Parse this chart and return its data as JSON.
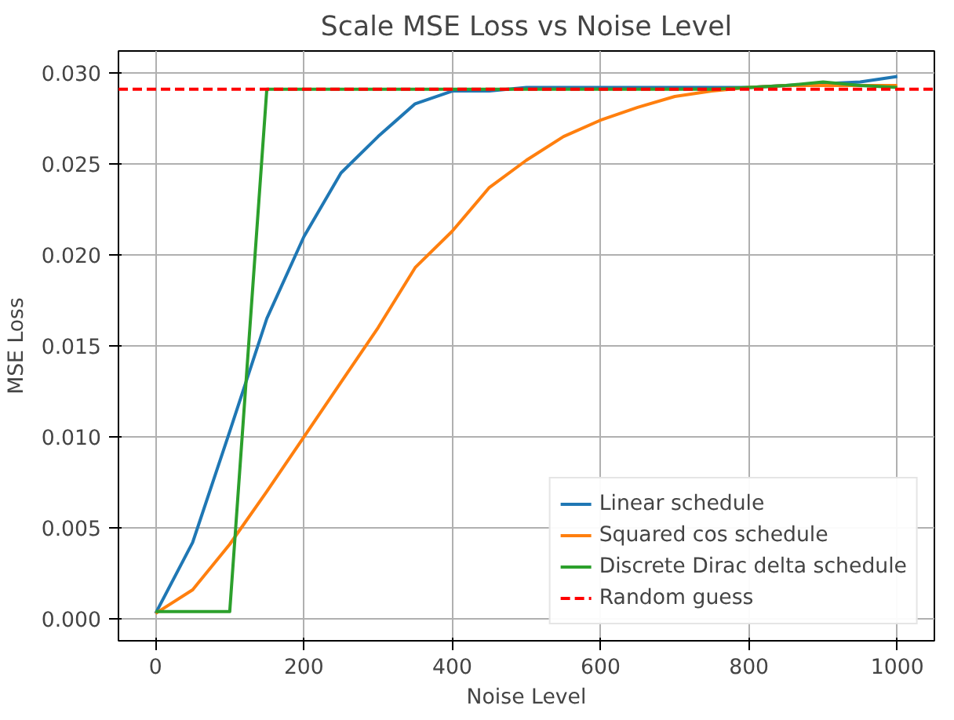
{
  "chart_data": {
    "type": "line",
    "title": "Scale MSE Loss vs Noise Level",
    "xlabel": "Noise Level",
    "ylabel": "MSE Loss",
    "x": [
      0,
      50,
      100,
      150,
      200,
      250,
      300,
      350,
      400,
      450,
      500,
      550,
      600,
      650,
      700,
      750,
      800,
      850,
      900,
      950,
      1000
    ],
    "series": [
      {
        "name": "Linear schedule",
        "color": "#1f77b4",
        "values": [
          0.0003,
          0.0042,
          0.0103,
          0.0165,
          0.021,
          0.0245,
          0.0265,
          0.0283,
          0.029,
          0.029,
          0.0292,
          0.0292,
          0.0292,
          0.0292,
          0.0292,
          0.0292,
          0.0292,
          0.0293,
          0.0294,
          0.0295,
          0.0298
        ]
      },
      {
        "name": "Squared cos schedule",
        "color": "#ff7f0e",
        "values": [
          0.0003,
          0.0016,
          0.0041,
          0.007,
          0.01,
          0.013,
          0.016,
          0.0193,
          0.0213,
          0.0237,
          0.0252,
          0.0265,
          0.0274,
          0.0281,
          0.0287,
          0.029,
          0.0292,
          0.0293,
          0.0293,
          0.0293,
          0.0293
        ]
      },
      {
        "name": "Discrete Dirac delta schedule",
        "color": "#2ca02c",
        "values": [
          0.0004,
          0.0004,
          0.0004,
          0.0291,
          0.0291,
          0.0291,
          0.0291,
          0.0291,
          0.0291,
          0.0291,
          0.0291,
          0.0291,
          0.0291,
          0.0291,
          0.0291,
          0.0291,
          0.0292,
          0.0293,
          0.0295,
          0.0293,
          0.0292
        ]
      }
    ],
    "ref_lines": [
      {
        "axis": "y",
        "value": 0.0291,
        "label": "Random guess",
        "color": "#ff0000",
        "line_style": "dashed"
      }
    ],
    "xlim": [
      -50,
      1050
    ],
    "ylim": [
      -0.0012,
      0.0312
    ],
    "xticks": [
      0,
      200,
      400,
      600,
      800,
      1000
    ],
    "yticks": [
      {
        "value": 0,
        "label": "0.000"
      },
      {
        "value": 0.005,
        "label": "0.005"
      },
      {
        "value": 0.01,
        "label": "0.010"
      },
      {
        "value": 0.015,
        "label": "0.015"
      },
      {
        "value": 0.02,
        "label": "0.020"
      },
      {
        "value": 0.025,
        "label": "0.025"
      },
      {
        "value": 0.03,
        "label": "0.030"
      }
    ],
    "grid": true,
    "legend": "bottom right",
    "line_style": "solid",
    "marker": "none"
  }
}
